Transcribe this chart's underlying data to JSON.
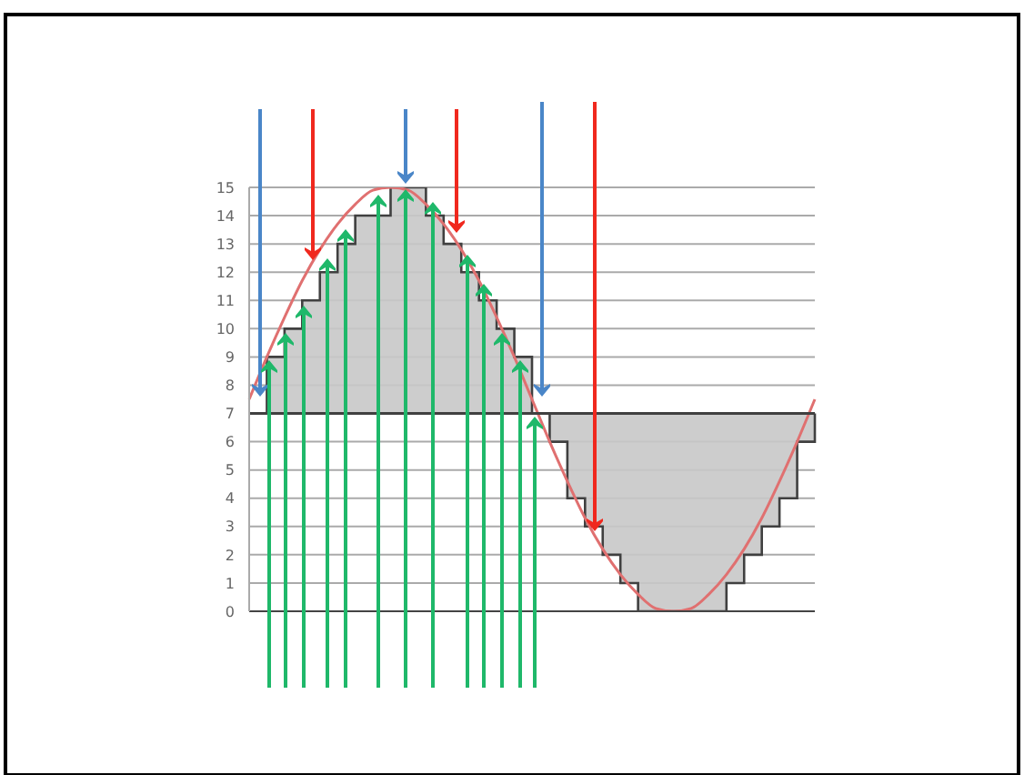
{
  "chart_data": {
    "type": "line",
    "categories": [
      null,
      null,
      null,
      null,
      null,
      null,
      null,
      null,
      null,
      null,
      null,
      null,
      null,
      null,
      null,
      null,
      null,
      null,
      null,
      null,
      null,
      null,
      null,
      null,
      null,
      null,
      null,
      null,
      null,
      null,
      null,
      null,
      null
    ],
    "series": [
      {
        "type": "step",
        "color": "#404040",
        "values": [
          7,
          9,
          10,
          11,
          12,
          13,
          14,
          14,
          15,
          15,
          14,
          13,
          12,
          11,
          10,
          9,
          7,
          6,
          4,
          3,
          2,
          1,
          0,
          0,
          0,
          0,
          0,
          1,
          2,
          3,
          4,
          6,
          7
        ]
      },
      {
        "color": "#e07070",
        "values": [
          7.5,
          9.0,
          10.4,
          11.7,
          12.8,
          13.7,
          14.4,
          14.9,
          15,
          14.9,
          14.4,
          13.7,
          12.8,
          11.7,
          10.4,
          9.0,
          7.5,
          6.0,
          4.6,
          3.3,
          2.2,
          1.3,
          0.6,
          0.1,
          0,
          0.1,
          0.6,
          1.3,
          2.2,
          3.3,
          4.6,
          6.0,
          7.5
        ]
      }
    ],
    "ylim": [
      0,
      15
    ],
    "yticks": [
      0,
      1,
      2,
      3,
      4,
      5,
      6,
      7,
      8,
      9,
      10,
      11,
      12,
      13,
      14,
      15
    ],
    "grid": "y",
    "tick_labels": "y",
    "ref_lines": [
      {
        "axis": "y",
        "value": 7,
        "color": "#404040"
      }
    ]
  }
}
